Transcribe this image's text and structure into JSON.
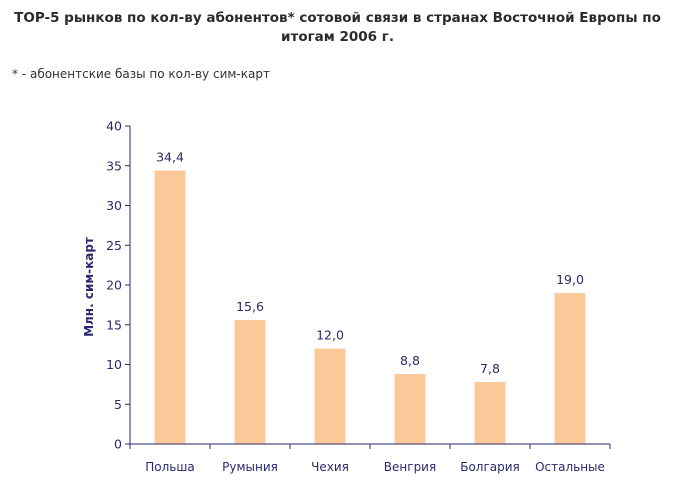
{
  "title_lines": [
    "TOP-5 рынков по кол-ву абонентов* сотовой связи в странах Восточной Европы по",
    "итогам 2006 г."
  ],
  "footnote": "* - абонентские базы по кол-ву сим-карт",
  "colors": {
    "bar": "#fcc99b",
    "axis": "#2a2a6e",
    "text": "#2a2a6e"
  },
  "chart_data": {
    "type": "bar",
    "title": "TOP-5 рынков по кол-ву абонентов* сотовой связи в странах Восточной Европы по итогам 2006 г.",
    "categories": [
      "Польша",
      "Румыния",
      "Чехия",
      "Венгрия",
      "Болгария",
      "Остальные"
    ],
    "values": [
      34.4,
      15.6,
      12.0,
      8.8,
      7.8,
      19.0
    ],
    "value_labels": [
      "34,4",
      "15,6",
      "12,0",
      "8,8",
      "7,8",
      "19,0"
    ],
    "ylabel": "Млн. сим-карт",
    "xlabel": "",
    "ylim": [
      0,
      40
    ],
    "yticks": [
      0,
      5,
      10,
      15,
      20,
      25,
      30,
      35,
      40
    ],
    "grid": false,
    "legend": "none"
  }
}
